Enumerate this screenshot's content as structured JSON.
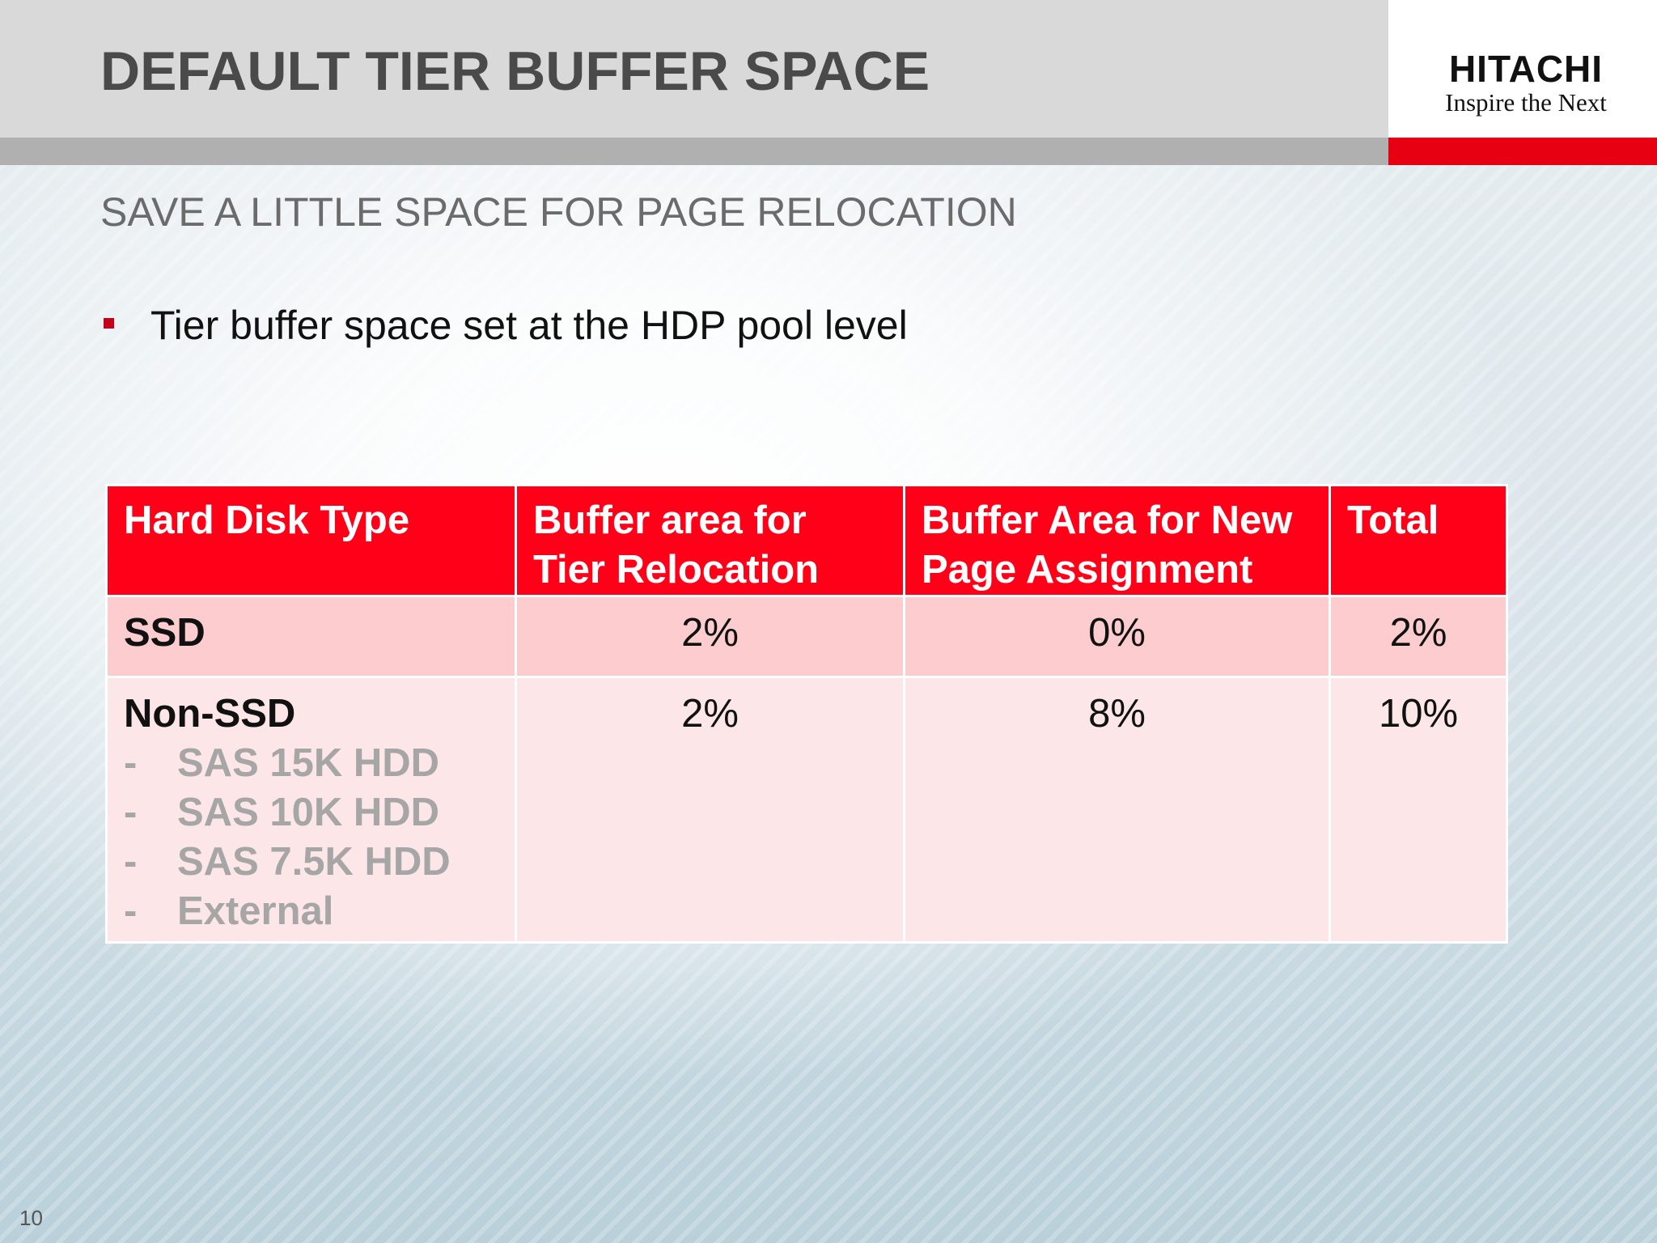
{
  "slide": {
    "title": "DEFAULT TIER BUFFER SPACE",
    "subtitle": "SAVE A LITTLE SPACE FOR PAGE RELOCATION",
    "bullet": "Tier buffer space set at the HDP pool level",
    "page_number": "10"
  },
  "logo": {
    "name": "HITACHI",
    "tagline": "Inspire the Next"
  },
  "table": {
    "headers": [
      "Hard Disk Type",
      "Buffer area for Tier Relocation",
      "Buffer Area for New Page Assignment",
      "Total"
    ],
    "rows": [
      {
        "type": "SSD",
        "sub_items": [],
        "tier_relocation": "2%",
        "new_page_assignment": "0%",
        "total": "2%"
      },
      {
        "type": "Non-SSD",
        "sub_items": [
          "SAS 15K HDD",
          "SAS 10K HDD",
          "SAS 7.5K HDD",
          "External"
        ],
        "tier_relocation": "2%",
        "new_page_assignment": "8%",
        "total": "10%"
      }
    ]
  },
  "colors": {
    "header_red": "#ff0018",
    "brand_red": "#e60012",
    "ssd_row": "#fccccf",
    "non_ssd_row": "#fde6e8",
    "bullet_red": "#c4001a"
  }
}
